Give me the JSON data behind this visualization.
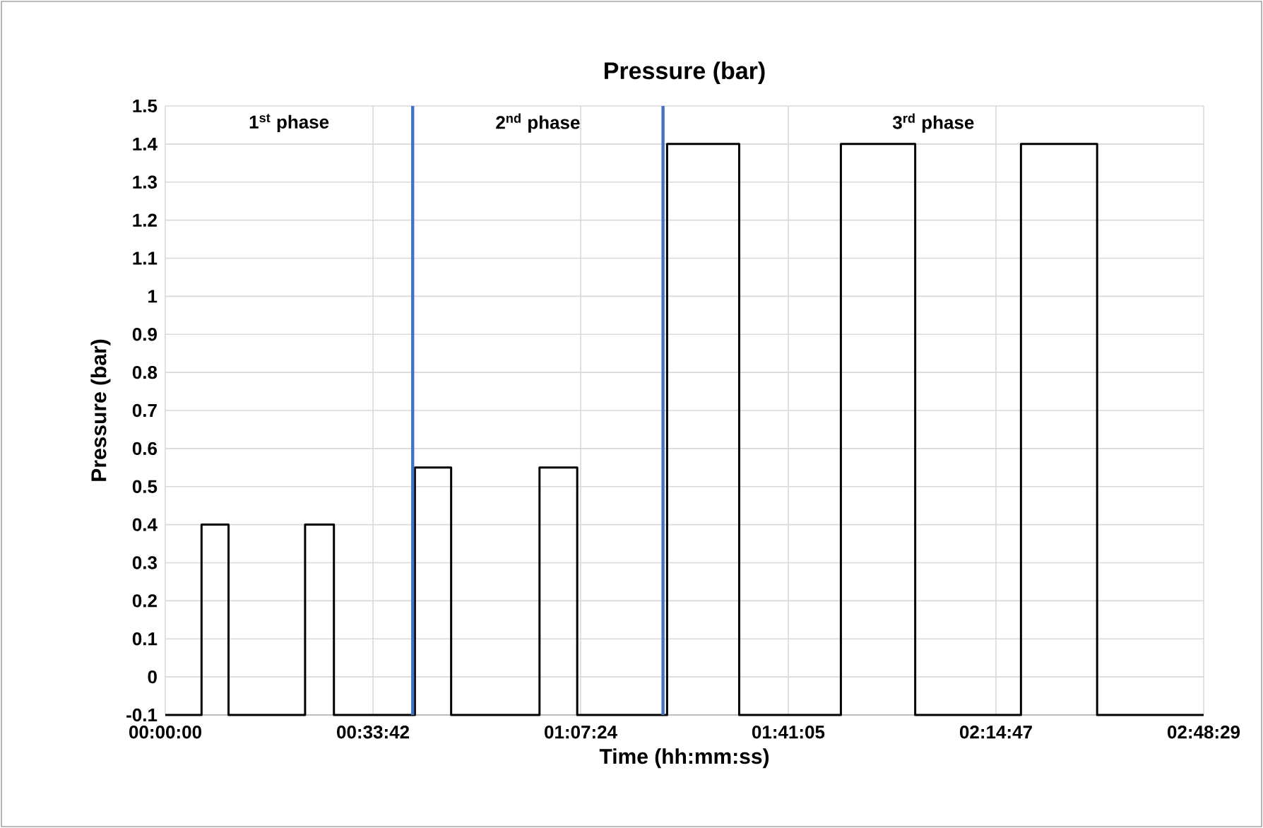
{
  "chart_data": {
    "type": "step",
    "title": "Pressure (bar)",
    "xlabel": "Time (hh:mm:ss)",
    "ylabel": "Pressure (bar)",
    "x": [
      0,
      0.098,
      0.171,
      0.378,
      0.456,
      0.675,
      0.773,
      1.012,
      1.114,
      1.357,
      1.552,
      1.827,
      2.028,
      2.314,
      2.52,
      2.808
    ],
    "series": [
      {
        "color": "#000000",
        "values": [
          -0.1,
          0.4,
          -0.1,
          0.4,
          -0.1,
          0.55,
          -0.1,
          0.55,
          -0.1,
          1.4,
          -0.1,
          1.4,
          -0.1,
          1.4,
          -0.1,
          -0.1
        ]
      }
    ],
    "xlim": [
      0,
      2.8081
    ],
    "xticks": [
      {
        "value": 0,
        "label": "00:00:00"
      },
      {
        "value": 0.5617,
        "label": "00:33:42"
      },
      {
        "value": 1.1233,
        "label": "01:07:24"
      },
      {
        "value": 1.6847,
        "label": "01:41:05"
      },
      {
        "value": 2.2464,
        "label": "02:14:47"
      },
      {
        "value": 2.8081,
        "label": "02:48:29"
      }
    ],
    "ylim": [
      -0.1,
      1.5
    ],
    "yticks": [
      -0.1,
      0,
      0.1,
      0.2,
      0.3,
      0.4,
      0.5,
      0.6,
      0.7,
      0.8,
      0.9,
      1,
      1.1,
      1.2,
      1.3,
      1.4,
      1.5
    ],
    "ref_lines": [
      {
        "axis": "x",
        "value": 0.669,
        "color": "#4472c4"
      },
      {
        "axis": "x",
        "value": 1.346,
        "color": "#4472c4"
      }
    ],
    "annotations": [
      "1$^{st}$ phase",
      "2$^{nd}$ phase",
      "3$^{rd}$ phase"
    ],
    "grid": true
  }
}
